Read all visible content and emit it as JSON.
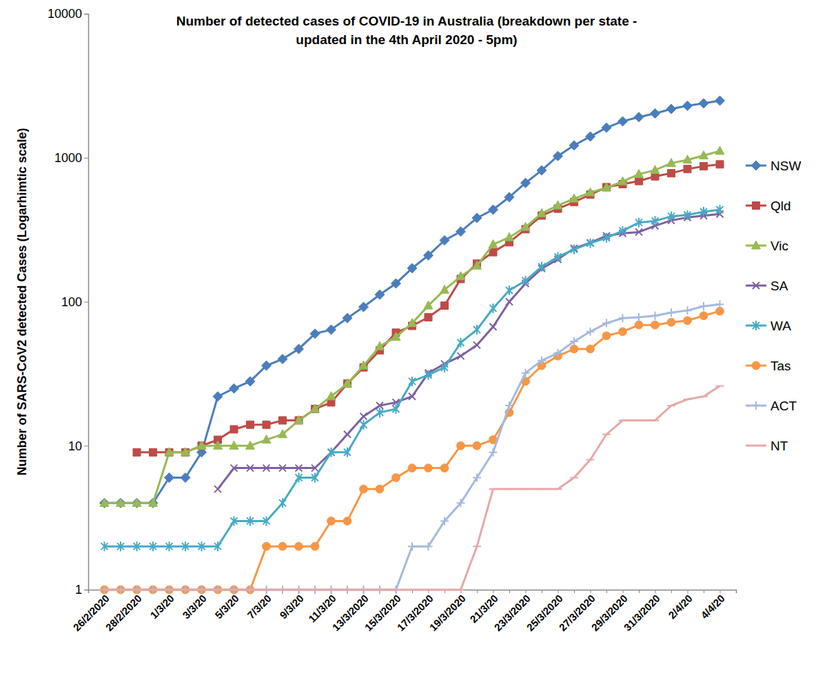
{
  "chart_data": {
    "type": "line",
    "title": "Number of detected cases of COVID-19 in Australia (breakdown per state -\nupdated in the 4th April 2020 - 5pm)",
    "y_label": "Number of SARS-CoV2 detected Cases (Logarhimtic scale)",
    "log": "y",
    "grid": false,
    "legend": "right",
    "categories": [
      "26/2/2020",
      null,
      "28/2/2020",
      null,
      "1/3/20",
      null,
      "3/3/20",
      null,
      "5/3/20",
      null,
      "7/3/20",
      null,
      "9/3/20",
      null,
      "11/3/20",
      null,
      "13/3/2020",
      null,
      "15/3/2020",
      null,
      "17/3/2020",
      null,
      "19/3/2020",
      null,
      "21/3/20",
      null,
      "23/3/2020",
      null,
      "25/3/2020",
      null,
      "27/3/2020",
      null,
      "29/3/2020",
      null,
      "31/3/2020",
      null,
      "2/4/20",
      null,
      "4/4/20"
    ],
    "ylim": [
      1,
      10000
    ],
    "yticks": [
      1,
      10,
      100,
      1000,
      10000
    ],
    "series": [
      {
        "name": "NSW",
        "color": "#4a7ebb",
        "marker": "diamond",
        "line_style": "solid",
        "values": [
          4,
          4,
          4,
          4,
          6,
          6,
          9,
          22,
          25,
          28,
          36,
          40,
          47,
          60,
          64,
          77,
          92,
          112,
          134,
          171,
          210,
          267,
          307,
          382,
          436,
          533,
          669,
          818,
          1029,
          1219,
          1405,
          1617,
          1791,
          1918,
          2032,
          2182,
          2298,
          2389,
          2493
        ]
      },
      {
        "name": "Qld",
        "color": "#be4b48",
        "marker": "square",
        "line_style": "solid",
        "values": [
          null,
          null,
          9,
          9,
          9,
          9,
          10,
          11,
          13,
          14,
          14,
          15,
          15,
          18,
          20,
          27,
          35,
          46,
          61,
          68,
          78,
          94,
          144,
          184,
          221,
          259,
          319,
          397,
          443,
          493,
          555,
          625,
          656,
          689,
          743,
          781,
          835,
          873,
          900
        ]
      },
      {
        "name": "Vic",
        "color": "#98b954",
        "marker": "triangle",
        "line_style": "solid",
        "values": [
          4,
          4,
          4,
          4,
          9,
          9,
          10,
          10,
          10,
          10,
          11,
          12,
          15,
          18,
          22,
          27,
          36,
          49,
          57,
          71,
          94,
          121,
          150,
          178,
          250,
          280,
          330,
          411,
          466,
          520,
          574,
          620,
          685,
          769,
          821,
          917,
          968,
          1036,
          1115
        ]
      },
      {
        "name": "SA",
        "color": "#7d60a0",
        "marker": "x",
        "line_style": "solid",
        "values": [
          null,
          null,
          null,
          null,
          null,
          null,
          null,
          5,
          7,
          7,
          7,
          7,
          7,
          7,
          9,
          12,
          16,
          19,
          20,
          22,
          32,
          37,
          42,
          50,
          67,
          100,
          134,
          170,
          197,
          235,
          257,
          287,
          299,
          305,
          337,
          367,
          385,
          396,
          407
        ]
      },
      {
        "name": "WA",
        "color": "#46aac5",
        "marker": "asterisk",
        "line_style": "solid",
        "values": [
          2,
          2,
          2,
          2,
          2,
          2,
          2,
          2,
          3,
          3,
          3,
          4,
          6,
          6,
          9,
          9,
          14,
          17,
          18,
          28,
          31,
          35,
          52,
          64,
          90,
          120,
          140,
          175,
          205,
          231,
          255,
          278,
          311,
          355,
          364,
          392,
          400,
          422,
          436
        ]
      },
      {
        "name": "Tas",
        "color": "#f79646",
        "marker": "circle",
        "line_style": "solid",
        "values": [
          1,
          1,
          1,
          1,
          1,
          1,
          1,
          1,
          1,
          1,
          2,
          2,
          2,
          2,
          3,
          3,
          5,
          5,
          6,
          7,
          7,
          7,
          10,
          10,
          11,
          17,
          28,
          36,
          42,
          47,
          47,
          58,
          62,
          69,
          69,
          72,
          74,
          80,
          86
        ]
      },
      {
        "name": "ACT",
        "color": "#a5b9dc",
        "marker": "plus",
        "line_style": "solid",
        "values": [
          1,
          1,
          1,
          1,
          1,
          1,
          1,
          1,
          1,
          1,
          1,
          1,
          1,
          1,
          1,
          1,
          1,
          1,
          1,
          2,
          2,
          3,
          4,
          6,
          9,
          19,
          32,
          39,
          44,
          53,
          62,
          71,
          77,
          78,
          80,
          84,
          87,
          93,
          96
        ]
      },
      {
        "name": "NT",
        "color": "#e6a8a7",
        "marker": "dash",
        "line_style": "solid",
        "values": [
          1,
          1,
          1,
          1,
          1,
          1,
          1,
          1,
          1,
          1,
          1,
          1,
          1,
          1,
          1,
          1,
          1,
          1,
          1,
          1,
          1,
          1,
          1,
          2,
          5,
          5,
          5,
          5,
          5,
          6,
          8,
          12,
          15,
          15,
          15,
          19,
          21,
          22,
          26
        ]
      }
    ]
  }
}
